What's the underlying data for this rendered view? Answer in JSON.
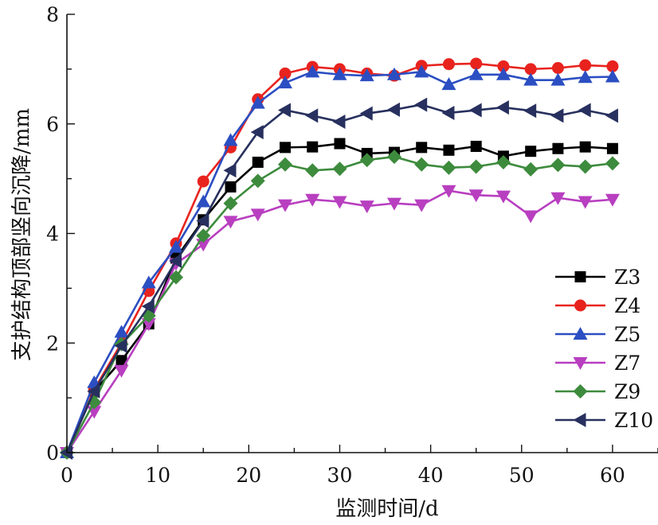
{
  "chart_data": {
    "type": "line",
    "title": "",
    "xlabel": "监测时间/d",
    "ylabel": "支护结构顶部竖向沉降/mm",
    "xlim": [
      0,
      65
    ],
    "ylim": [
      0,
      8
    ],
    "xticks": [
      0,
      10,
      20,
      30,
      40,
      50,
      60
    ],
    "yticks": [
      0,
      2,
      4,
      6,
      8
    ],
    "grid": false,
    "legend_position": "right",
    "x": [
      0,
      3,
      6,
      9,
      12,
      15,
      18,
      21,
      24,
      27,
      30,
      33,
      36,
      39,
      42,
      45,
      48,
      51,
      54,
      57,
      60
    ],
    "series": [
      {
        "name": "Z3",
        "color": "#000000",
        "marker": "square",
        "values": [
          0,
          1.12,
          1.68,
          2.35,
          3.55,
          4.25,
          4.85,
          5.3,
          5.57,
          5.58,
          5.64,
          5.46,
          5.48,
          5.57,
          5.52,
          5.59,
          5.41,
          5.5,
          5.55,
          5.58,
          5.55
        ]
      },
      {
        "name": "Z4",
        "color": "#e8231e",
        "marker": "circle",
        "values": [
          0,
          1.15,
          2.0,
          2.95,
          3.82,
          4.95,
          5.57,
          6.45,
          6.92,
          7.04,
          7.0,
          6.92,
          6.88,
          7.06,
          7.09,
          7.1,
          7.05,
          7.0,
          7.02,
          7.07,
          7.05
        ]
      },
      {
        "name": "Z5",
        "color": "#2b4ec2",
        "marker": "triangle-up",
        "values": [
          0,
          1.28,
          2.2,
          3.1,
          3.75,
          4.58,
          5.7,
          6.38,
          6.75,
          6.95,
          6.9,
          6.88,
          6.9,
          6.95,
          6.72,
          6.9,
          6.9,
          6.8,
          6.8,
          6.85,
          6.86
        ]
      },
      {
        "name": "Z7",
        "color": "#b83fc0",
        "marker": "triangle-down",
        "values": [
          0,
          0.75,
          1.5,
          2.35,
          3.45,
          3.8,
          4.22,
          4.35,
          4.52,
          4.62,
          4.58,
          4.5,
          4.55,
          4.52,
          4.78,
          4.7,
          4.68,
          4.32,
          4.65,
          4.58,
          4.62
        ]
      },
      {
        "name": "Z9",
        "color": "#3d8b3d",
        "marker": "diamond",
        "values": [
          0,
          0.92,
          1.98,
          2.5,
          3.2,
          3.96,
          4.55,
          4.96,
          5.26,
          5.15,
          5.18,
          5.34,
          5.4,
          5.26,
          5.2,
          5.22,
          5.3,
          5.17,
          5.25,
          5.22,
          5.28
        ]
      },
      {
        "name": "Z10",
        "color": "#27305e",
        "marker": "triangle-left",
        "values": [
          0,
          1.12,
          1.95,
          2.67,
          3.5,
          4.23,
          5.15,
          5.85,
          6.25,
          6.15,
          6.04,
          6.19,
          6.26,
          6.35,
          6.2,
          6.25,
          6.3,
          6.24,
          6.15,
          6.25,
          6.15
        ]
      }
    ]
  }
}
